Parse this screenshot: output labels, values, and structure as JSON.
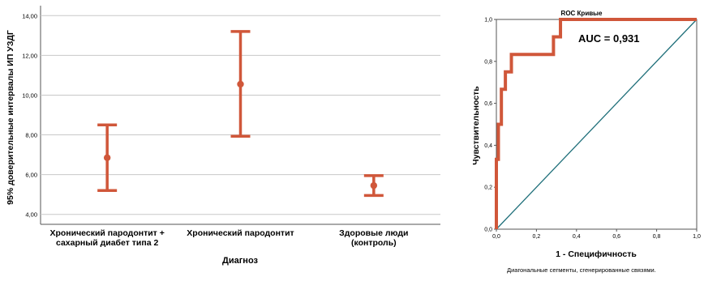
{
  "chart_data": [
    {
      "type": "errorbar",
      "ylabel": "95% доверительные интервалы ИП УЗДГ",
      "xlabel": "Диагноз",
      "ylim": [
        3.5,
        14.5
      ],
      "yticks": [
        4,
        6,
        8,
        10,
        12,
        14
      ],
      "ytick_labels": [
        "4,00",
        "6,00",
        "8,00",
        "10,00",
        "12,00",
        "14,00"
      ],
      "grid": "horizontal",
      "color": "#d0573a",
      "categories": [
        [
          "Хронический пародонтит +",
          "сахарный диабет типа 2"
        ],
        [
          "Хронический пародонтит"
        ],
        [
          "Здоровые люди",
          "(контроль)"
        ]
      ],
      "points": [
        {
          "mean": 6.85,
          "lower": 5.2,
          "upper": 8.5
        },
        {
          "mean": 10.55,
          "lower": 7.93,
          "upper": 13.2
        },
        {
          "mean": 5.45,
          "lower": 4.95,
          "upper": 5.95
        }
      ]
    },
    {
      "type": "line",
      "title": "ROC Кривые",
      "xlabel": "1 - Специфичность",
      "ylabel": "Чувствительность",
      "xlim": [
        0,
        1
      ],
      "ylim": [
        0,
        1
      ],
      "xticks": [
        0,
        0.2,
        0.4,
        0.6,
        0.8,
        1.0
      ],
      "xtick_labels": [
        "0,0",
        "0,2",
        "0,4",
        "0,6",
        "0,8",
        "1,0"
      ],
      "yticks": [
        0,
        0.2,
        0.4,
        0.6,
        0.8,
        1.0
      ],
      "ytick_labels": [
        "0,0",
        "0,2",
        "0,4",
        "0,6",
        "0,8",
        "1,0"
      ],
      "annotation": "AUC = 0,931",
      "footnote": "Диагональные сегменты, сгенерированные связями.",
      "series": [
        {
          "color": "#d0573a",
          "x": [
            0,
            0,
            0.01,
            0.01,
            0.025,
            0.025,
            0.045,
            0.045,
            0.075,
            0.075,
            0.285,
            0.285,
            0.32,
            0.32,
            1.0
          ],
          "y": [
            0,
            0.333,
            0.333,
            0.5,
            0.5,
            0.667,
            0.667,
            0.75,
            0.75,
            0.833,
            0.833,
            0.917,
            0.917,
            1.0,
            1.0
          ]
        },
        {
          "color": "#1f6f7a",
          "x": [
            0,
            1
          ],
          "y": [
            0,
            1
          ]
        }
      ]
    }
  ]
}
